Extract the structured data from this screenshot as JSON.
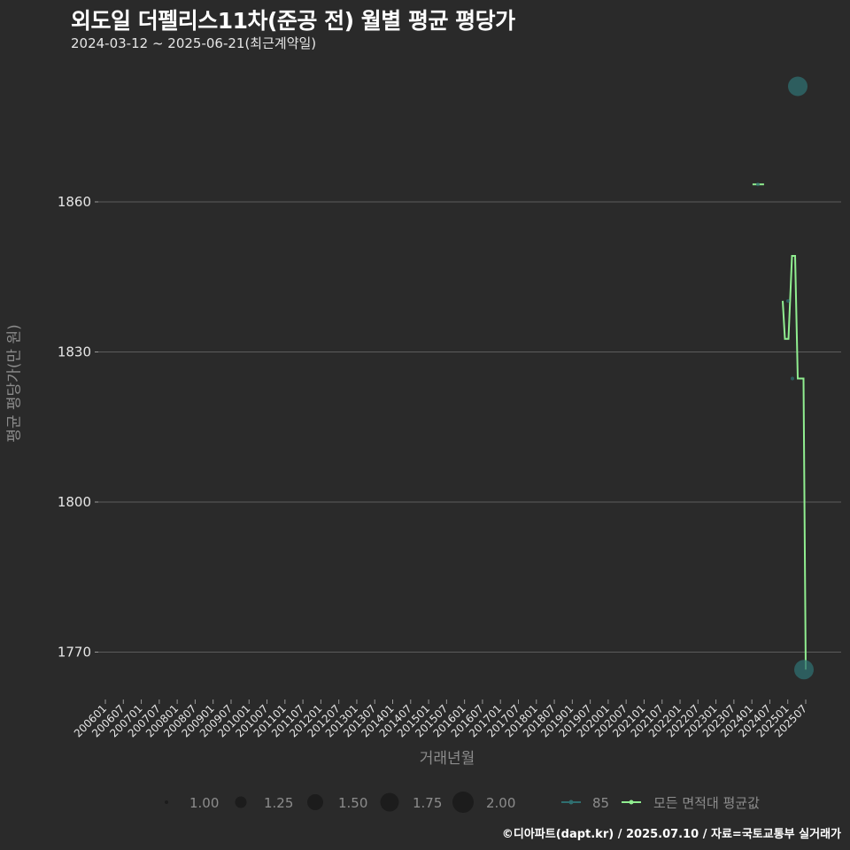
{
  "title": "외도일 더펠리스11차(준공 전) 월별 평균 평당가",
  "subtitle": "2024-03-12 ~ 2025-06-21(최근계약일)",
  "caption": "©디아파트(dapt.kr) / 2025.07.10 / 자료=국토교통부 실거래가",
  "colors": {
    "background": "#2a2a2a",
    "grid": "#5c5c5c",
    "series_85": "#2f6f70",
    "series_avg": "#90ee90",
    "text": "#ffffff",
    "axis_title": "#8c8c8c"
  },
  "legend": {
    "size": [
      {
        "label": "1.00",
        "r": 2
      },
      {
        "label": "1.25",
        "r": 6.5
      },
      {
        "label": "1.50",
        "r": 9
      },
      {
        "label": "1.75",
        "r": 10.5
      },
      {
        "label": "2.00",
        "r": 12
      }
    ],
    "series": [
      {
        "label": "85",
        "color": "#2f6f70"
      },
      {
        "label": "모든 면적대 평균값",
        "color": "#90ee90"
      }
    ]
  },
  "chart_data": {
    "type": "line",
    "title": "외도일 더펠리스11차(준공 전) 월별 평균 평당가",
    "subtitle": "2024-03-12 ~ 2025-06-21(최근계약일)",
    "xlabel": "거래년월",
    "ylabel": "평균 평당가(만 원)",
    "ylim": [
      1762,
      1888
    ],
    "yticks": [
      1770,
      1800,
      1830,
      1860
    ],
    "xticks": [
      "200601",
      "200607",
      "200701",
      "200707",
      "200801",
      "200807",
      "200901",
      "200907",
      "201001",
      "201007",
      "201101",
      "201107",
      "201201",
      "201207",
      "201301",
      "201307",
      "201401",
      "201407",
      "201501",
      "201507",
      "201601",
      "201607",
      "201701",
      "201707",
      "201801",
      "201807",
      "201901",
      "201907",
      "202001",
      "202007",
      "202101",
      "202107",
      "202201",
      "202207",
      "202301",
      "202307",
      "202401",
      "202407",
      "202501",
      "202507"
    ],
    "grid": true,
    "legend_position": "bottom",
    "series": [
      {
        "name": "85",
        "kind": "scatter",
        "points": [
          {
            "x": "202403",
            "y": 1863.5,
            "size": 1.0
          },
          {
            "x": "202411",
            "y": 1840.2,
            "size": 1.0
          },
          {
            "x": "202501",
            "y": 1824.7,
            "size": 1.0
          },
          {
            "x": "202504",
            "y": 1883.1,
            "size": 2.0
          },
          {
            "x": "202506",
            "y": 1766.5,
            "size": 2.0
          }
        ]
      },
      {
        "name": "모든 면적대 평균값",
        "kind": "step-line",
        "points": [
          {
            "x": "202403",
            "y": 1863.5
          },
          {
            "x": "202411",
            "y": 1840.2
          },
          {
            "x": "202412",
            "y": 1832.6
          },
          {
            "x": "202502",
            "y": 1849.2
          },
          {
            "x": "202503",
            "y": 1824.7
          },
          {
            "x": "202506",
            "y": 1766.5
          }
        ]
      }
    ]
  }
}
